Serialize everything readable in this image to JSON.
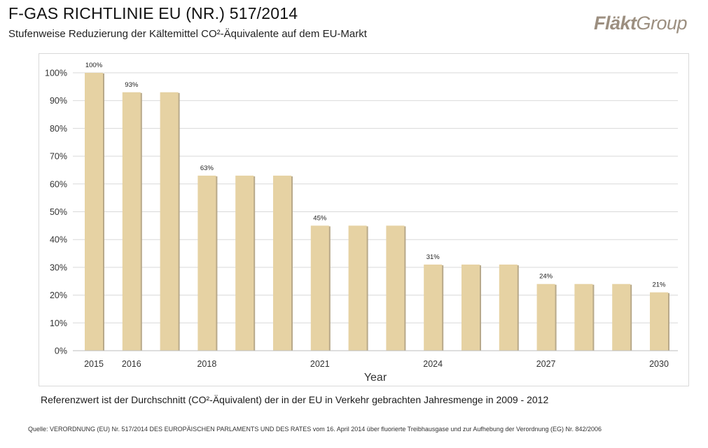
{
  "header": {
    "title": "F-GAS RICHTLINIE EU (NR.) 517/2014",
    "subtitle": "Stufenweise Reduzierung der Kältemittel CO²-Äquivalente auf dem EU-Markt"
  },
  "logo": {
    "part_bold": "Fläkt",
    "part_light": "Group",
    "color": "#9c8f80"
  },
  "colors": {
    "bar": "#e6d2a3",
    "bar_shadow": "#b8a98a",
    "grid": "#d9d9d9"
  },
  "chart_data": {
    "type": "bar",
    "title": "",
    "xlabel": "Year",
    "ylabel": "",
    "ylim": [
      0,
      100
    ],
    "y_ticks": [
      "0%",
      "10%",
      "20%",
      "30%",
      "40%",
      "50%",
      "60%",
      "70%",
      "80%",
      "90%",
      "100%"
    ],
    "categories": [
      "2015",
      "2016",
      "2017",
      "2018",
      "2019",
      "2020",
      "2021",
      "2022",
      "2023",
      "2024",
      "2025",
      "2026",
      "2027",
      "2028",
      "2029",
      "2030"
    ],
    "x_tick_labels": [
      "2015",
      "2016",
      "",
      "2018",
      "",
      "",
      "2021",
      "",
      "",
      "2024",
      "",
      "",
      "2027",
      "",
      "",
      "2030"
    ],
    "values": [
      100,
      93,
      93,
      63,
      63,
      63,
      45,
      45,
      45,
      31,
      31,
      31,
      24,
      24,
      24,
      21
    ],
    "data_labels": [
      "100%",
      "93%",
      "",
      "63%",
      "",
      "",
      "45%",
      "",
      "",
      "31%",
      "",
      "",
      "24%",
      "",
      "",
      "21%"
    ]
  },
  "footnote": {
    "text": "Referenzwert ist der Durchschnitt (CO²-Äquivalent) der in der EU in Verkehr gebrachten Jahresmenge in 2009 - 2012"
  },
  "source": {
    "text": "Quelle: VERORDNUNG (EU) Nr. 517/2014 DES EUROPÄISCHEN PARLAMENTS UND DES RATES vom 16. April 2014 über fluorierte Treibhausgase und zur Aufhebung der Verordnung (EG) Nr. 842/2006"
  }
}
